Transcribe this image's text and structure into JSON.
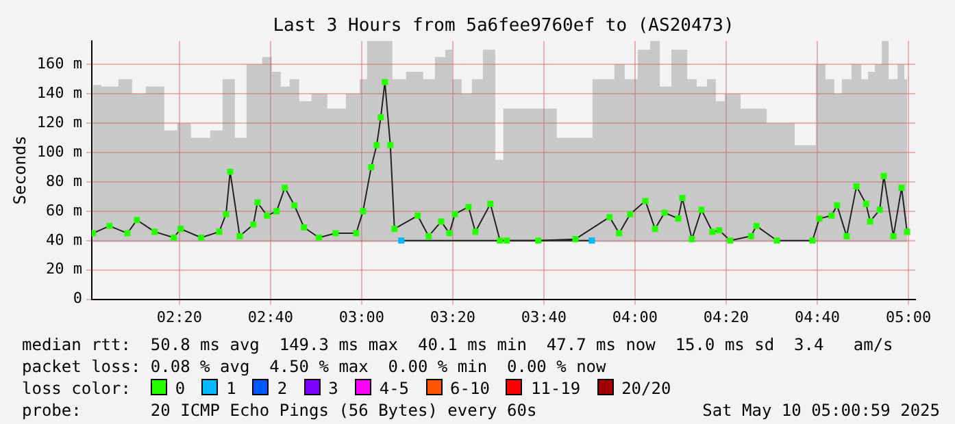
{
  "chart_data": {
    "type": "line",
    "title": "Last 3 Hours from 5a6fee9760ef to (AS20473)",
    "ylabel": "Seconds",
    "legend_title": "loss color:",
    "xlim": [
      2.013,
      5.025
    ],
    "xticks": [
      {
        "value": 2.3333,
        "label": "02:20"
      },
      {
        "value": 2.6667,
        "label": "02:40"
      },
      {
        "value": 3,
        "label": "03:00"
      },
      {
        "value": 3.3333,
        "label": "03:20"
      },
      {
        "value": 3.6667,
        "label": "03:40"
      },
      {
        "value": 4,
        "label": "04:00"
      },
      {
        "value": 4.3333,
        "label": "04:20"
      },
      {
        "value": 4.6667,
        "label": "04:40"
      },
      {
        "value": 5,
        "label": "05:00"
      }
    ],
    "ylim": [
      0,
      176
    ],
    "yticks": [
      {
        "value": 0,
        "label": "0"
      },
      {
        "value": 20,
        "label": "20 m"
      },
      {
        "value": 40,
        "label": "40 m"
      },
      {
        "value": 60,
        "label": "60 m"
      },
      {
        "value": 80,
        "label": "80 m"
      },
      {
        "value": 100,
        "label": "100 m"
      },
      {
        "value": 120,
        "label": "120 m"
      },
      {
        "value": 140,
        "label": "140 m"
      },
      {
        "value": 160,
        "label": "160 m"
      }
    ],
    "grid": true,
    "legend": "bottom",
    "marker": "square",
    "line_style": "solid",
    "series": [
      {
        "name": "0",
        "color": "#26ff00",
        "x": [
          2.017,
          2.078,
          2.143,
          2.178,
          2.243,
          2.313,
          2.338,
          2.413,
          2.479,
          2.504,
          2.519,
          2.554,
          2.604,
          2.619,
          2.654,
          2.689,
          2.719,
          2.754,
          2.789,
          2.844,
          2.905,
          2.98,
          3.005,
          3.035,
          3.055,
          3.07,
          3.085,
          3.105,
          3.12,
          3.205,
          3.245,
          3.291,
          3.321,
          3.341,
          3.391,
          3.416,
          3.471,
          3.506,
          3.531,
          3.646,
          3.782,
          3.907,
          3.942,
          3.982,
          4.038,
          4.073,
          4.108,
          4.158,
          4.173,
          4.208,
          4.243,
          4.283,
          4.308,
          4.348,
          4.424,
          4.444,
          4.519,
          4.649,
          4.674,
          4.719,
          4.739,
          4.774,
          4.81,
          4.845,
          4.86,
          4.895,
          4.91,
          4.945,
          4.975,
          4.995
        ],
        "values": [
          45,
          50,
          45,
          54,
          46,
          42,
          48,
          42,
          46,
          58,
          87,
          43,
          51,
          66,
          57,
          60,
          76,
          64,
          49,
          42,
          45,
          45,
          60,
          90,
          105,
          124,
          148,
          105,
          48,
          57,
          43,
          53,
          45,
          58,
          63,
          46,
          65,
          40,
          40,
          40,
          41,
          56,
          45,
          58,
          67,
          48,
          59,
          55,
          69,
          41,
          61,
          46,
          47,
          40,
          43,
          50,
          40,
          40,
          55,
          57,
          64,
          43,
          77,
          65,
          53,
          61,
          84,
          43,
          76,
          46
        ],
        "lower": [
          39,
          39,
          39,
          39,
          39,
          39,
          39,
          39,
          39,
          39,
          39,
          39,
          39,
          39,
          39,
          39,
          39,
          39,
          39,
          39,
          39,
          39,
          39,
          39,
          39,
          39,
          39,
          39,
          39,
          39,
          39,
          39,
          39,
          39,
          39,
          39,
          39,
          39,
          39,
          39,
          39,
          39,
          39,
          39,
          39,
          39,
          39,
          39,
          39,
          39,
          39,
          39,
          39,
          39,
          39,
          39,
          39,
          39,
          39,
          39,
          39,
          39,
          39,
          39,
          39,
          39,
          39,
          39,
          39,
          39
        ],
        "upper": [
          146,
          145,
          150,
          140,
          145,
          115,
          120,
          110,
          115,
          150,
          150,
          110,
          160,
          160,
          165,
          155,
          145,
          150,
          135,
          140,
          130,
          140,
          150,
          176,
          176,
          176,
          176,
          176,
          150,
          155,
          150,
          165,
          170,
          150,
          140,
          150,
          170,
          95,
          130,
          130,
          110,
          150,
          160,
          150,
          170,
          176,
          145,
          170,
          170,
          150,
          145,
          150,
          135,
          140,
          130,
          130,
          120,
          105,
          160,
          150,
          140,
          150,
          160,
          150,
          155,
          160,
          176,
          150,
          160,
          150
        ]
      },
      {
        "name": "1",
        "color": "#00b8ff",
        "x": [
          3.145,
          3.842
        ],
        "values": [
          40,
          40
        ]
      },
      {
        "name": "2",
        "color": "#0059ff"
      },
      {
        "name": "3",
        "color": "#7e00ff"
      },
      {
        "name": "4-5",
        "color": "#ff00ff"
      },
      {
        "name": "6-10",
        "color": "#ff5500"
      },
      {
        "name": "11-19",
        "color": "#ff0000"
      },
      {
        "name": "20/20",
        "color": "#a10000"
      }
    ],
    "annotations": [
      "median rtt:  50.8 ms avg  149.3 ms max  40.1 ms min  47.7 ms now  15.0 ms sd  3.4   am/s",
      "packet loss: 0.08 % avg  4.50 % max  0.00 % min  0.00 % now",
      "probe:       20 ICMP Echo Pings (56 Bytes) every 60s",
      "Sat May 10 05:00:59 2025"
    ]
  }
}
